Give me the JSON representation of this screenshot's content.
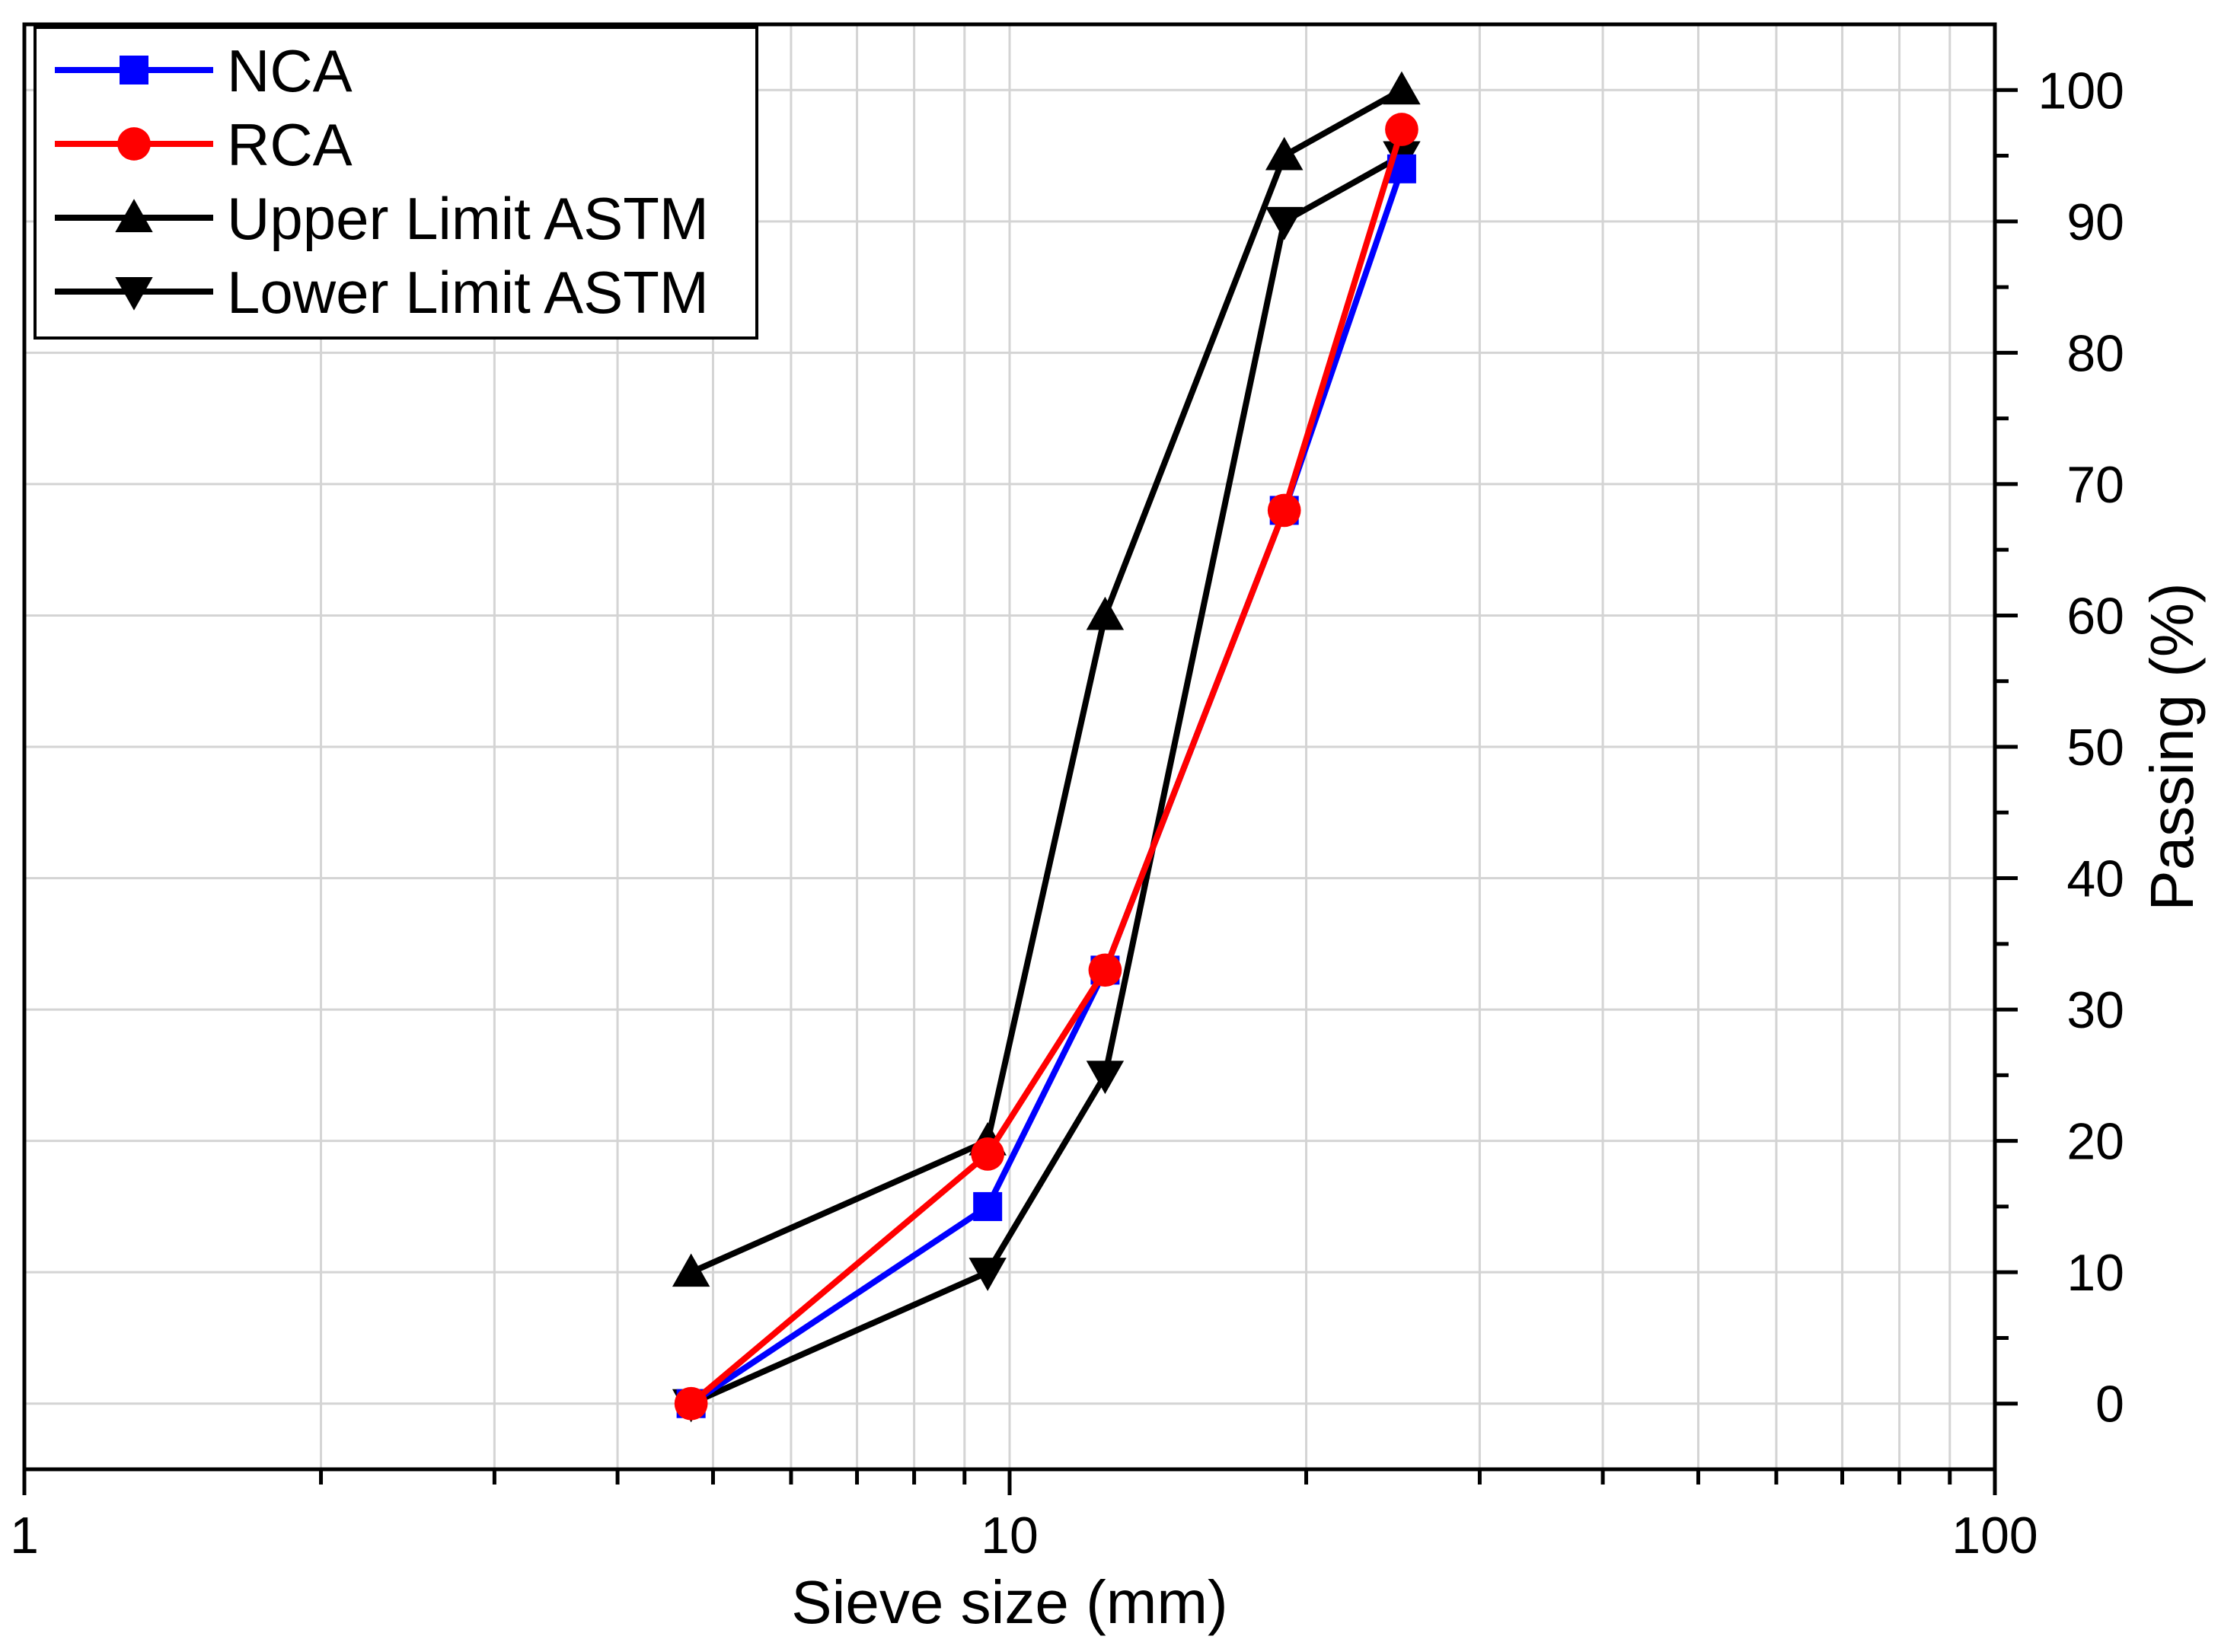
{
  "chart_data": {
    "type": "line",
    "title": "",
    "xlabel": "Sieve size (mm)",
    "ylabel": "Passing (%)",
    "xscale": "log",
    "xlim": [
      1,
      100
    ],
    "ylim": [
      -5,
      105
    ],
    "x_ticks": [
      1,
      10,
      100
    ],
    "x_tick_labels": [
      "1",
      "10",
      "100"
    ],
    "y_ticks": [
      0,
      10,
      20,
      30,
      40,
      50,
      60,
      70,
      80,
      90,
      100
    ],
    "y_tick_labels": [
      "0",
      "10",
      "20",
      "30",
      "40",
      "50",
      "60",
      "70",
      "80",
      "90",
      "100"
    ],
    "y_axis_side": "right",
    "grid": true,
    "legend_position": "top-left",
    "series": [
      {
        "name": "NCA",
        "color": "#0000ff",
        "marker": "square",
        "x": [
          4.75,
          9.5,
          12.5,
          19,
          25
        ],
        "y": [
          0,
          15,
          33,
          68,
          94
        ]
      },
      {
        "name": "RCA",
        "color": "#ff0000",
        "marker": "circle",
        "x": [
          4.75,
          9.5,
          12.5,
          19,
          25
        ],
        "y": [
          0,
          19,
          33,
          68,
          97
        ]
      },
      {
        "name": "Upper Limit ASTM",
        "color": "#000000",
        "marker": "triangle-up",
        "x": [
          4.75,
          9.5,
          12.5,
          19,
          25
        ],
        "y": [
          10,
          20,
          60,
          95,
          100
        ]
      },
      {
        "name": "Lower Limit ASTM",
        "color": "#000000",
        "marker": "triangle-down",
        "x": [
          4.75,
          9.5,
          12.5,
          19,
          25
        ],
        "y": [
          0,
          10,
          25,
          90,
          95
        ]
      }
    ]
  }
}
